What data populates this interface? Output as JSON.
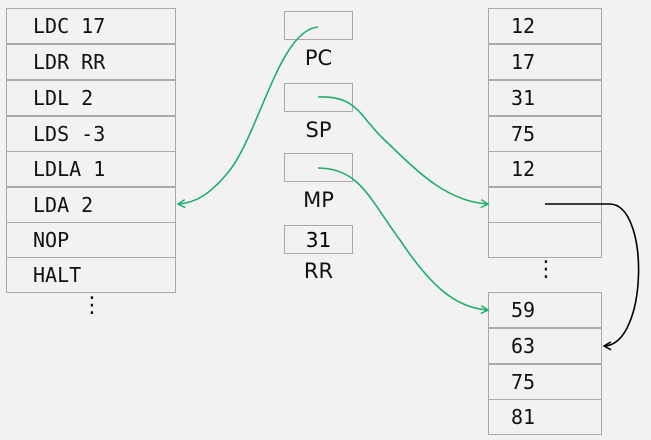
{
  "program": [
    "LDC 17",
    "LDR RR",
    "LDL 2",
    "LDS -3",
    "LDLA 1",
    "LDA 2",
    "NOP",
    "HALT"
  ],
  "registers": [
    {
      "label": "PC",
      "value": ""
    },
    {
      "label": "SP",
      "value": ""
    },
    {
      "label": "MP",
      "value": ""
    },
    {
      "label": "RR",
      "value": "31"
    }
  ],
  "stack_top": [
    "12",
    "17",
    "31",
    "75",
    "12",
    "",
    ""
  ],
  "stack_bottom": [
    "59",
    "63",
    "75",
    "81"
  ],
  "ellipsis": "⋮",
  "colors": {
    "pointer": "#1fae6b",
    "link": "#000000",
    "border": "#a9a9a9",
    "background": "#f2f2f2"
  }
}
